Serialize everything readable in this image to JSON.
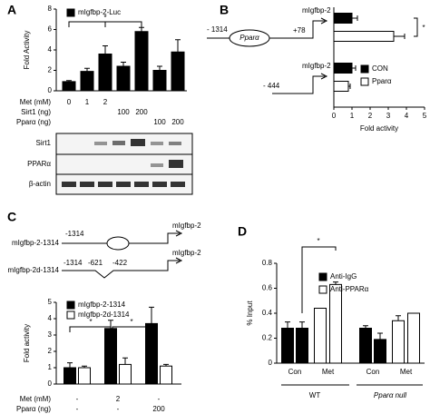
{
  "chart_data": [
    {
      "type": "bar",
      "panel": "A",
      "ylabel": "Fold Activity",
      "ylim": [
        0,
        8
      ],
      "yticks": [
        0,
        2,
        4,
        6,
        8
      ],
      "series": [
        {
          "name": "mIgfbp-2-Luc",
          "color": "#000000",
          "values": [
            0.9,
            1.9,
            3.6,
            2.4,
            5.8,
            2.0,
            3.8
          ],
          "errors": [
            0.1,
            0.3,
            0.8,
            0.4,
            0.4,
            0.4,
            1.2
          ]
        }
      ],
      "conditions": [
        {
          "label": "Met (mM)",
          "values": [
            "0",
            "1",
            "2",
            null,
            null,
            null,
            null
          ]
        },
        {
          "label": "Sirt1 (ng)",
          "values": [
            null,
            null,
            null,
            "100",
            "200",
            null,
            null
          ]
        },
        {
          "label": "Pparα (ng)",
          "values": [
            null,
            null,
            null,
            null,
            null,
            "100",
            "200"
          ]
        }
      ],
      "annotations": [
        "*"
      ],
      "blot_labels": [
        "Sirt1",
        "PPARα",
        "β-actin"
      ]
    },
    {
      "type": "barh",
      "panel": "B",
      "xlabel": "Fold activity",
      "xlim": [
        0,
        5
      ],
      "xticks": [
        0,
        1,
        2,
        3,
        4,
        5
      ],
      "series": [
        {
          "name": "CON",
          "color": "#000000",
          "values": [
            1.0,
            1.0
          ],
          "errors": [
            0.3,
            0.2
          ]
        },
        {
          "name": "Pparα",
          "color": "#ffffff",
          "values": [
            3.3,
            0.8
          ],
          "errors": [
            0.6,
            0.1
          ]
        }
      ],
      "constructs": [
        {
          "start": "- 1314",
          "element": "Pparα",
          "end": "+78",
          "gene": "mIgfbp-2"
        },
        {
          "start": "- 444",
          "gene": "mIgfbp-2"
        }
      ],
      "annotations": [
        "*"
      ]
    },
    {
      "type": "bar",
      "panel": "C",
      "ylabel": "Fold activity",
      "ylim": [
        0,
        5
      ],
      "yticks": [
        0,
        1,
        2,
        3,
        4,
        5
      ],
      "series": [
        {
          "name": "mIgfbp-2-1314",
          "color": "#000000",
          "values": [
            1.0,
            3.4,
            3.7
          ],
          "errors": [
            0.3,
            0.5,
            1.0
          ]
        },
        {
          "name": "mIgfbp-2d-1314",
          "color": "#ffffff",
          "values": [
            1.0,
            1.2,
            1.1
          ],
          "errors": [
            0.1,
            0.4,
            0.1
          ]
        }
      ],
      "conditions": [
        {
          "label": "Met (mM)",
          "values": [
            "-",
            "2",
            "-"
          ]
        },
        {
          "label": "Pparα (ng)",
          "values": [
            "-",
            "-",
            "200"
          ]
        }
      ],
      "constructs": [
        {
          "name": "mIgfbp-2-1314",
          "positions": [
            "-1314"
          ],
          "gene": "mIgfbp-2"
        },
        {
          "name": "mIgfbp-2d-1314",
          "positions": [
            "-1314",
            "-621",
            "-422"
          ],
          "gene": "mIgfbp-2"
        }
      ],
      "annotations": [
        "*",
        "*"
      ]
    },
    {
      "type": "bar",
      "panel": "D",
      "ylabel": "% Input",
      "ylim": [
        0,
        0.8
      ],
      "yticks": [
        0,
        0.2,
        0.4,
        0.6,
        0.8
      ],
      "categories": [
        "Con",
        "Met",
        "Con",
        "Met"
      ],
      "groups": [
        "WT",
        "Pparα null"
      ],
      "series": [
        {
          "name": "Anti-IgG",
          "color": "#000000",
          "values": [
            0.28,
            0.28,
            0.28,
            0.19
          ],
          "errors": [
            0.05,
            0.05,
            0.02,
            0.05
          ]
        },
        {
          "name": "Anti-PPARα",
          "color": "#ffffff",
          "values": [
            0.44,
            0.63,
            0.34,
            0.4
          ],
          "errors": [
            null,
            0.02,
            0.04,
            null
          ]
        }
      ],
      "annotations": [
        "*"
      ]
    }
  ]
}
